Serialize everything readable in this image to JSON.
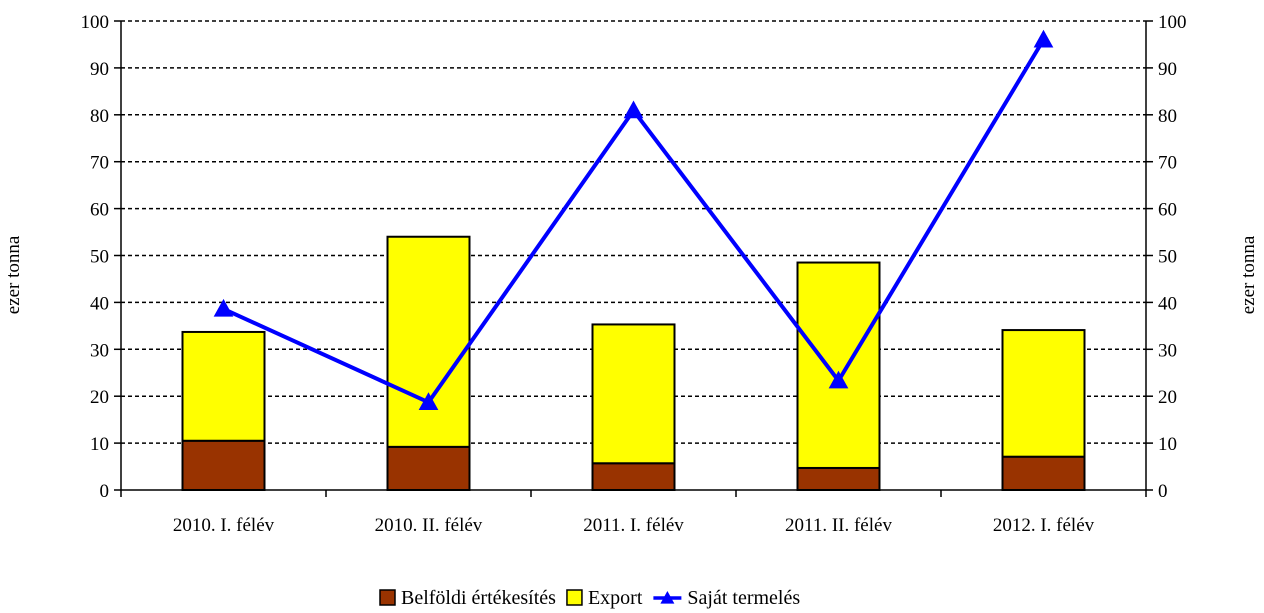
{
  "chart_data": {
    "type": "bar",
    "stacked": true,
    "categories": [
      "2010. I. félév",
      "2010. II. félév",
      "2011. I. félév",
      "2011. II. félév",
      "2012. I. félév"
    ],
    "series": [
      {
        "name": "Belföldi értékesítés",
        "kind": "bar",
        "color": "#993300",
        "values": [
          10.5,
          9.2,
          5.7,
          4.7,
          7.1
        ]
      },
      {
        "name": "Export",
        "kind": "bar",
        "color": "#FFFF00",
        "values": [
          23.2,
          44.8,
          29.6,
          43.8,
          27.0
        ]
      },
      {
        "name": "Saját termelés",
        "kind": "line",
        "color": "#0000FF",
        "marker": "triangle",
        "values": [
          38.6,
          18.7,
          80.9,
          23.3,
          96.0
        ]
      }
    ],
    "ylabel": "ezer tonna",
    "y2label": "ezer tonna",
    "ylim": [
      0,
      100
    ],
    "y2lim": [
      0,
      100
    ],
    "yticks": [
      0,
      10,
      20,
      30,
      40,
      50,
      60,
      70,
      80,
      90,
      100
    ],
    "grid": "dotted horizontal",
    "legend_position": "bottom"
  }
}
